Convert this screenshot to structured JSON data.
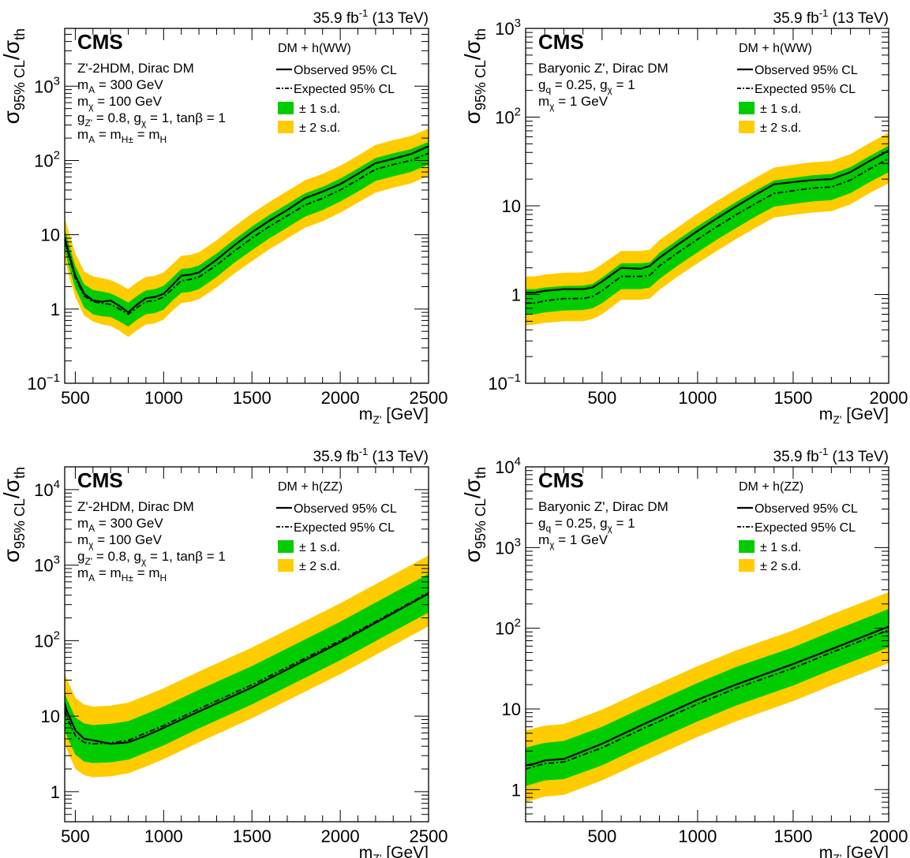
{
  "colors": {
    "band1": "#00CC00",
    "band2": "#FFCC00",
    "line": "#000000"
  },
  "chart_data": [
    {
      "type": "line",
      "lumi_label": "35.9 fb",
      "lumi_sup": "-1",
      "lumi_energy": " (13 TeV)",
      "cms_label": "CMS",
      "ylabel": {
        "main": "σ",
        "sub1": "95% CL",
        "slash": "/σ",
        "sub2": "th"
      },
      "xlabel": {
        "main": "m",
        "sub": "Z'",
        "unit": " [GeV]"
      },
      "xlim": [
        440,
        2500
      ],
      "ylim": [
        0.1,
        6000
      ],
      "log_y": true,
      "xticks": [
        {
          "v": 500,
          "t": "500"
        },
        {
          "v": 1000,
          "t": "1000"
        },
        {
          "v": 1500,
          "t": "1500"
        },
        {
          "v": 2000,
          "t": "2000"
        },
        {
          "v": 2500,
          "t": "2500"
        }
      ],
      "yticks": [
        {
          "v": 0.1,
          "t": "10",
          "sup": "−1"
        },
        {
          "v": 1,
          "t": "1"
        },
        {
          "v": 10,
          "t": "10"
        },
        {
          "v": 100,
          "t": "10",
          "sup": "2"
        },
        {
          "v": 1000,
          "t": "10",
          "sup": "3"
        }
      ],
      "info": [
        {
          "s": [
            {
              "t": "Z'-2HDM, Dirac DM"
            }
          ]
        },
        {
          "s": [
            {
              "t": "m"
            },
            {
              "t": "A",
              "sub": true
            },
            {
              "t": " = 300 GeV"
            }
          ]
        },
        {
          "s": [
            {
              "t": "m"
            },
            {
              "t": "χ",
              "sub": true
            },
            {
              "t": " = 100 GeV"
            }
          ]
        },
        {
          "s": [
            {
              "t": "g"
            },
            {
              "t": "Z'",
              "sub": true
            },
            {
              "t": " = 0.8, g"
            },
            {
              "t": "χ",
              "sub": true
            },
            {
              "t": " = 1, tanβ = 1"
            }
          ]
        },
        {
          "s": [
            {
              "t": "m"
            },
            {
              "t": "A",
              "sub": true
            },
            {
              "t": " = m"
            },
            {
              "t": "H±",
              "sub": true
            },
            {
              "t": " = m"
            },
            {
              "t": "H",
              "sub": true
            }
          ]
        }
      ],
      "legend": {
        "title": "DM + h(WW)",
        "observed": "Observed 95% CL",
        "expected": "Expected 95% CL",
        "band1": "± 1 s.d.",
        "band2": "± 2 s.d."
      },
      "x": [
        440,
        460,
        500,
        550,
        600,
        650,
        700,
        750,
        800,
        850,
        900,
        950,
        1000,
        1050,
        1100,
        1150,
        1200,
        1300,
        1400,
        1500,
        1600,
        1700,
        1800,
        1900,
        2000,
        2100,
        2200,
        2300,
        2400,
        2500
      ],
      "series": [
        {
          "name": "Observed 95% CL",
          "values": [
            9,
            6,
            2.8,
            1.6,
            1.3,
            1.25,
            1.3,
            1.1,
            0.9,
            1.15,
            1.4,
            1.45,
            1.6,
            2.1,
            2.8,
            2.9,
            3.1,
            4.6,
            7.2,
            10.8,
            15.5,
            21.5,
            31,
            38,
            48,
            66,
            92,
            105,
            122,
            155
          ]
        },
        {
          "name": "Expected 95% CL",
          "values": [
            8.5,
            5.6,
            2.6,
            1.5,
            1.25,
            1.2,
            1.15,
            1.0,
            0.85,
            1.05,
            1.25,
            1.3,
            1.45,
            1.85,
            2.4,
            2.5,
            2.7,
            3.9,
            6.0,
            9.0,
            13,
            18,
            25,
            31,
            40,
            55,
            76,
            88,
            100,
            125
          ]
        }
      ],
      "band1_lo": [
        6.5,
        4.0,
        1.9,
        1.05,
        0.85,
        0.8,
        0.78,
        0.68,
        0.58,
        0.72,
        0.85,
        0.88,
        0.98,
        1.3,
        1.65,
        1.7,
        1.85,
        2.7,
        4.2,
        6.2,
        9.0,
        12.5,
        17.5,
        21.5,
        28,
        38,
        53,
        61,
        70,
        88
      ],
      "band1_hi": [
        12,
        8,
        3.8,
        2.15,
        1.8,
        1.72,
        1.62,
        1.42,
        1.22,
        1.5,
        1.78,
        1.85,
        2.05,
        2.65,
        3.45,
        3.55,
        3.85,
        5.6,
        8.6,
        12.9,
        18.6,
        25.8,
        36,
        44,
        57,
        78,
        108,
        125,
        142,
        178
      ],
      "band2_lo": [
        4.8,
        3.0,
        1.45,
        0.82,
        0.68,
        0.62,
        0.59,
        0.51,
        0.42,
        0.52,
        0.62,
        0.64,
        0.72,
        0.95,
        1.2,
        1.25,
        1.35,
        1.95,
        3.0,
        4.4,
        6.4,
        8.9,
        12.4,
        15.2,
        19.8,
        27,
        37,
        43,
        49,
        62
      ],
      "band2_hi": [
        17,
        11.5,
        5.6,
        3.2,
        2.75,
        2.6,
        2.45,
        2.15,
        1.85,
        2.3,
        2.7,
        2.8,
        3.1,
        4.0,
        5.2,
        5.35,
        5.8,
        8.4,
        12.9,
        19.3,
        27.8,
        38.7,
        54,
        66,
        85,
        116,
        162,
        188,
        213,
        268
      ]
    },
    {
      "type": "line",
      "lumi_label": "35.9 fb",
      "lumi_sup": "-1",
      "lumi_energy": " (13 TeV)",
      "cms_label": "CMS",
      "ylabel": {
        "main": "σ",
        "sub1": "95% CL",
        "slash": "/σ",
        "sub2": "th"
      },
      "xlabel": {
        "main": "m",
        "sub": "Z'",
        "unit": " [GeV]"
      },
      "xlim": [
        100,
        2000
      ],
      "ylim": [
        0.1,
        1000
      ],
      "log_y": true,
      "xticks": [
        {
          "v": 500,
          "t": "500"
        },
        {
          "v": 1000,
          "t": "1000"
        },
        {
          "v": 1500,
          "t": "1500"
        },
        {
          "v": 2000,
          "t": "2000"
        }
      ],
      "yticks": [
        {
          "v": 0.1,
          "t": "10",
          "sup": "−1"
        },
        {
          "v": 1,
          "t": "1"
        },
        {
          "v": 10,
          "t": "10"
        },
        {
          "v": 100,
          "t": "10",
          "sup": "2"
        },
        {
          "v": 1000,
          "t": "10",
          "sup": "3"
        }
      ],
      "info": [
        {
          "s": [
            {
              "t": "Baryonic Z', Dirac DM"
            }
          ]
        },
        {
          "s": [
            {
              "t": "g"
            },
            {
              "t": "q",
              "sub": true
            },
            {
              "t": " = 0.25, g"
            },
            {
              "t": "χ",
              "sub": true
            },
            {
              "t": " = 1"
            }
          ]
        },
        {
          "s": [
            {
              "t": "m"
            },
            {
              "t": "χ",
              "sub": true
            },
            {
              "t": " = 1 GeV"
            }
          ]
        }
      ],
      "legend": {
        "title": "DM + h(WW)",
        "observed": "Observed 95% CL",
        "expected": "Expected 95% CL",
        "band1": "± 1 s.d.",
        "band2": "± 2 s.d."
      },
      "x": [
        100,
        150,
        200,
        300,
        400,
        450,
        500,
        600,
        700,
        750,
        800,
        900,
        1000,
        1100,
        1200,
        1300,
        1400,
        1500,
        1600,
        1700,
        1800,
        1900,
        2000
      ],
      "series": [
        {
          "name": "Observed 95% CL",
          "values": [
            1.05,
            1.05,
            1.1,
            1.15,
            1.15,
            1.2,
            1.4,
            2.0,
            1.95,
            2.1,
            2.6,
            3.7,
            5.2,
            7.2,
            9.8,
            13.2,
            17.5,
            18.5,
            19.5,
            20,
            24,
            32,
            42
          ]
        },
        {
          "name": "Expected 95% CL",
          "values": [
            0.8,
            0.8,
            0.85,
            0.9,
            0.9,
            0.95,
            1.1,
            1.6,
            1.6,
            1.65,
            2.1,
            3.0,
            4.2,
            5.8,
            7.9,
            10.5,
            13.8,
            14.8,
            15.8,
            16.3,
            19.5,
            26,
            34
          ]
        }
      ],
      "band1_lo": [
        0.6,
        0.6,
        0.63,
        0.66,
        0.67,
        0.7,
        0.8,
        1.15,
        1.15,
        1.2,
        1.5,
        2.15,
        3.0,
        4.15,
        5.6,
        7.5,
        9.8,
        10.5,
        11.2,
        11.6,
        13.9,
        18.5,
        24
      ],
      "band1_hi": [
        1.15,
        1.15,
        1.2,
        1.25,
        1.26,
        1.32,
        1.55,
        2.25,
        2.25,
        2.3,
        2.95,
        4.2,
        5.9,
        8.1,
        11,
        14.7,
        19.3,
        20.7,
        22.1,
        22.8,
        27.3,
        36.4,
        47.6
      ],
      "band2_lo": [
        0.45,
        0.46,
        0.48,
        0.5,
        0.5,
        0.53,
        0.6,
        0.87,
        0.87,
        0.9,
        1.13,
        1.62,
        2.25,
        3.1,
        4.2,
        5.6,
        7.4,
        7.9,
        8.4,
        8.7,
        10.4,
        13.9,
        18
      ],
      "band2_hi": [
        1.6,
        1.6,
        1.68,
        1.76,
        1.78,
        1.87,
        2.2,
        3.1,
        3.1,
        3.2,
        4.1,
        5.8,
        8.2,
        11.3,
        15.3,
        20.5,
        27,
        29,
        31,
        32,
        38.2,
        51,
        67
      ]
    },
    {
      "type": "line",
      "lumi_label": "35.9 fb",
      "lumi_sup": "-1",
      "lumi_energy": " (13 TeV)",
      "cms_label": "CMS",
      "ylabel": {
        "main": "σ",
        "sub1": "95% CL",
        "slash": "/σ",
        "sub2": "th"
      },
      "xlabel": {
        "main": "m",
        "sub": "Z'",
        "unit": " [GeV]"
      },
      "xlim": [
        440,
        2500
      ],
      "ylim": [
        0.4,
        20000
      ],
      "log_y": true,
      "xticks": [
        {
          "v": 500,
          "t": "500"
        },
        {
          "v": 1000,
          "t": "1000"
        },
        {
          "v": 1500,
          "t": "1500"
        },
        {
          "v": 2000,
          "t": "2000"
        },
        {
          "v": 2500,
          "t": "2500"
        }
      ],
      "yticks": [
        {
          "v": 1,
          "t": "1"
        },
        {
          "v": 10,
          "t": "10"
        },
        {
          "v": 100,
          "t": "10",
          "sup": "2"
        },
        {
          "v": 1000,
          "t": "10",
          "sup": "3"
        },
        {
          "v": 10000,
          "t": "10",
          "sup": "4"
        }
      ],
      "info": [
        {
          "s": [
            {
              "t": "Z'-2HDM, Dirac DM"
            }
          ]
        },
        {
          "s": [
            {
              "t": "m"
            },
            {
              "t": "A",
              "sub": true
            },
            {
              "t": " = 300 GeV"
            }
          ]
        },
        {
          "s": [
            {
              "t": "m"
            },
            {
              "t": "χ",
              "sub": true
            },
            {
              "t": " = 100 GeV"
            }
          ]
        },
        {
          "s": [
            {
              "t": "g"
            },
            {
              "t": "Z'",
              "sub": true
            },
            {
              "t": " = 0.8, g"
            },
            {
              "t": "χ",
              "sub": true
            },
            {
              "t": " = 1, tanβ = 1"
            }
          ]
        },
        {
          "s": [
            {
              "t": "m"
            },
            {
              "t": "A",
              "sub": true
            },
            {
              "t": " = m"
            },
            {
              "t": "H±",
              "sub": true
            },
            {
              "t": " = m"
            },
            {
              "t": "H",
              "sub": true
            }
          ]
        }
      ],
      "legend": {
        "title": "DM + h(ZZ)",
        "observed": "Observed 95% CL",
        "expected": "Expected 95% CL",
        "band1": "± 1 s.d.",
        "band2": "± 2 s.d."
      },
      "x": [
        440,
        450,
        500,
        550,
        600,
        700,
        800,
        900,
        1000,
        1200,
        1500,
        2000,
        2500
      ],
      "series": [
        {
          "name": "Observed 95% CL",
          "values": [
            15,
            12,
            6.5,
            5.0,
            4.8,
            4.3,
            4.5,
            5.5,
            7.0,
            11.5,
            24,
            95,
            420
          ]
        },
        {
          "name": "Expected 95% CL",
          "values": [
            12,
            10,
            5.5,
            4.5,
            4.3,
            4.4,
            4.8,
            6.0,
            7.5,
            12.5,
            26,
            100,
            430
          ]
        }
      ],
      "band1_lo": [
        6.8,
        5.6,
        3.1,
        2.5,
        2.4,
        2.45,
        2.65,
        3.3,
        4.1,
        6.9,
        14.3,
        55,
        236
      ],
      "band1_hi": [
        21,
        17.5,
        9.6,
        8.0,
        7.6,
        7.9,
        8.6,
        10.7,
        13.4,
        22.3,
        46,
        178,
        765
      ],
      "band2_lo": [
        4.5,
        3.7,
        2.0,
        1.65,
        1.55,
        1.6,
        1.75,
        2.15,
        2.7,
        4.5,
        9.4,
        36,
        155
      ],
      "band2_hi": [
        38,
        32,
        17.5,
        14.2,
        13.4,
        13.8,
        15.1,
        18.7,
        23.4,
        39,
        81,
        312,
        1340
      ]
    },
    {
      "type": "line",
      "lumi_label": "35.9 fb",
      "lumi_sup": "-1",
      "lumi_energy": " (13 TeV)",
      "cms_label": "CMS",
      "ylabel": {
        "main": "σ",
        "sub1": "95% CL",
        "slash": "/σ",
        "sub2": "th"
      },
      "xlabel": {
        "main": "m",
        "sub": "Z'",
        "unit": " [GeV]"
      },
      "xlim": [
        100,
        2000
      ],
      "ylim": [
        0.4,
        10000
      ],
      "log_y": true,
      "xticks": [
        {
          "v": 500,
          "t": "500"
        },
        {
          "v": 1000,
          "t": "1000"
        },
        {
          "v": 1500,
          "t": "1500"
        },
        {
          "v": 2000,
          "t": "2000"
        }
      ],
      "yticks": [
        {
          "v": 1,
          "t": "1"
        },
        {
          "v": 10,
          "t": "10"
        },
        {
          "v": 100,
          "t": "10",
          "sup": "2"
        },
        {
          "v": 1000,
          "t": "10",
          "sup": "3"
        },
        {
          "v": 10000,
          "t": "10",
          "sup": "4"
        }
      ],
      "info": [
        {
          "s": [
            {
              "t": "Baryonic Z', Dirac DM"
            }
          ]
        },
        {
          "s": [
            {
              "t": "g"
            },
            {
              "t": "q",
              "sub": true
            },
            {
              "t": " = 0.25, g"
            },
            {
              "t": "χ",
              "sub": true
            },
            {
              "t": " = 1"
            }
          ]
        },
        {
          "s": [
            {
              "t": "m"
            },
            {
              "t": "χ",
              "sub": true
            },
            {
              "t": " = 1 GeV"
            }
          ]
        }
      ],
      "legend": {
        "title": "DM + h(ZZ)",
        "observed": "Observed 95% CL",
        "expected": "Expected 95% CL",
        "band1": "± 1 s.d.",
        "band2": "± 2 s.d."
      },
      "x": [
        100,
        150,
        200,
        300,
        500,
        700,
        1000,
        1200,
        1500,
        1700,
        2000
      ],
      "series": [
        {
          "name": "Observed 95% CL",
          "values": [
            2.0,
            2.1,
            2.3,
            2.4,
            3.7,
            6.2,
            13,
            20,
            36,
            55,
            105
          ]
        },
        {
          "name": "Expected 95% CL",
          "values": [
            1.8,
            1.95,
            2.1,
            2.2,
            3.3,
            5.5,
            11.5,
            18,
            32,
            50,
            95
          ]
        }
      ],
      "band1_lo": [
        1.1,
        1.2,
        1.3,
        1.35,
        2.0,
        3.35,
        7.0,
        11,
        19.5,
        30.5,
        58
      ],
      "band1_hi": [
        3.3,
        3.55,
        3.8,
        4.0,
        6.0,
        10,
        21,
        33,
        58,
        91,
        173
      ],
      "band2_lo": [
        0.7,
        0.76,
        0.82,
        0.86,
        1.3,
        2.15,
        4.5,
        7.0,
        12.5,
        19.5,
        37
      ],
      "band2_hi": [
        5.4,
        5.8,
        6.2,
        6.5,
        9.8,
        16.3,
        34,
        53,
        94,
        148,
        280
      ]
    }
  ]
}
